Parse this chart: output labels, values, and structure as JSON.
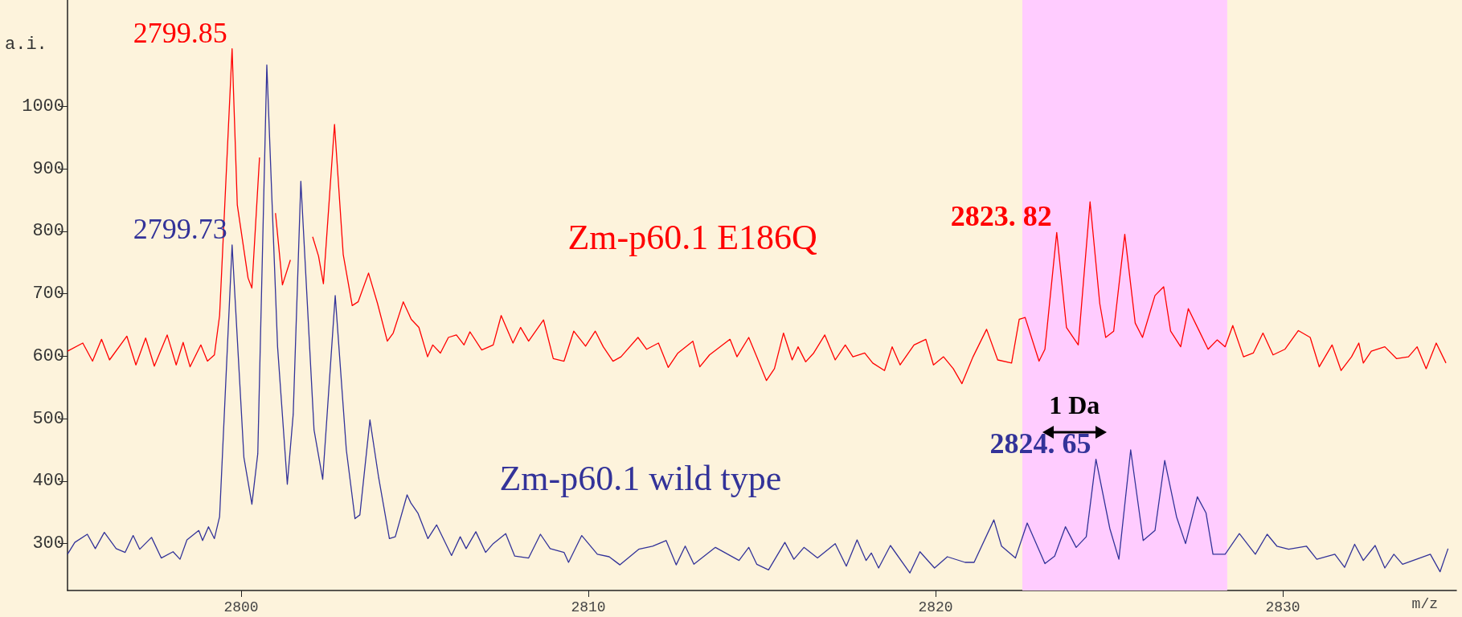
{
  "chart_data": {
    "type": "line",
    "xlabel": "m/z",
    "ylabel": "a.i.",
    "xlim": [
      2795,
      2835
    ],
    "xticks": [
      2800,
      2810,
      2820,
      2830
    ],
    "ylim": [
      225,
      1170
    ],
    "yticks": [
      300,
      400,
      500,
      600,
      700,
      800,
      900,
      1000
    ],
    "grid": false,
    "legend": false,
    "bands": [
      {
        "axis": "x",
        "from": 2822.5,
        "to": 2828.4,
        "color": "#ffccff"
      }
    ],
    "annotations": [
      {
        "text": "2799.85",
        "x": 2799.74,
        "y": 1092
      },
      {
        "text": "2799.73",
        "x": 2799.74,
        "y": 778
      },
      {
        "text": "2823. 82",
        "x": 2823.49,
        "y": 798
      },
      {
        "text": "2824. 65",
        "x": 2824.62,
        "y": 435
      },
      "1 Da"
    ],
    "series": [
      {
        "name": "Zm-p60.1 E186Q",
        "color": "#ff0000",
        "x": [
          2795.0,
          2795.44,
          2795.72,
          2795.98,
          2796.21,
          2796.71,
          2796.97,
          2797.25,
          2797.5,
          2797.87,
          2798.13,
          2798.33,
          2798.53,
          2798.84,
          2799.03,
          2799.23,
          2799.38,
          2799.74,
          2799.89,
          2800.2,
          2800.31,
          2800.53,
          2800.68,
          2800.84,
          2800.99,
          2801.19,
          2801.42,
          2801.62,
          2801.78,
          2802.06,
          2802.23,
          2802.37,
          2802.69,
          2802.94,
          2803.2,
          2803.37,
          2803.67,
          2803.93,
          2804.21,
          2804.38,
          2804.67,
          2804.9,
          2805.12,
          2805.37,
          2805.52,
          2805.74,
          2805.97,
          2806.2,
          2806.42,
          2806.59,
          2806.93,
          2807.26,
          2807.49,
          2807.83,
          2808.05,
          2808.28,
          2808.71,
          2808.99,
          2809.3,
          2809.58,
          2809.92,
          2810.2,
          2810.43,
          2810.71,
          2810.94,
          2811.43,
          2811.68,
          2812.02,
          2812.3,
          2812.58,
          2813.01,
          2813.21,
          2813.49,
          2814.08,
          2814.28,
          2814.62,
          2814.85,
          2815.13,
          2815.36,
          2815.62,
          2815.87,
          2816.04,
          2816.26,
          2816.49,
          2816.81,
          2817.11,
          2817.4,
          2817.62,
          2817.96,
          2818.19,
          2818.53,
          2818.75,
          2818.98,
          2819.38,
          2819.72,
          2819.94,
          2820.23,
          2820.51,
          2820.76,
          2821.08,
          2821.47,
          2821.79,
          2822.19,
          2822.41,
          2822.58,
          2822.98,
          2823.15,
          2823.49,
          2823.77,
          2824.11,
          2824.45,
          2824.73,
          2824.9,
          2825.13,
          2825.45,
          2825.75,
          2825.96,
          2826.32,
          2826.57,
          2826.77,
          2827.06,
          2827.28,
          2827.57,
          2827.85,
          2828.11,
          2828.34,
          2828.56,
          2828.87,
          2829.15,
          2829.43,
          2829.72,
          2830.06,
          2830.45,
          2830.79,
          2831.05,
          2831.42,
          2831.68,
          2831.98,
          2832.19,
          2832.32,
          2832.55,
          2832.94,
          2833.28,
          2833.62,
          2833.87,
          2834.13,
          2834.42,
          2834.7
        ],
        "values": [
          608,
          621,
          592,
          627,
          594,
          632,
          586,
          629,
          584,
          634,
          586,
          622,
          583,
          618,
          592,
          602,
          665,
          1092,
          842,
          725,
          709,
          918,
          null,
          null,
          829,
          714,
          754,
          null,
          null,
          791,
          760,
          716,
          971,
          763,
          681,
          687,
          733,
          684,
          624,
          637,
          687,
          659,
          646,
          599,
          618,
          605,
          630,
          634,
          618,
          639,
          610,
          618,
          665,
          621,
          646,
          624,
          658,
          596,
          592,
          640,
          616,
          640,
          615,
          592,
          599,
          630,
          611,
          621,
          582,
          605,
          624,
          583,
          602,
          627,
          599,
          630,
          599,
          561,
          580,
          637,
          594,
          615,
          591,
          605,
          634,
          594,
          618,
          599,
          605,
          589,
          577,
          615,
          586,
          618,
          627,
          586,
          599,
          580,
          556,
          599,
          643,
          594,
          589,
          659,
          662,
          592,
          611,
          798,
          646,
          618,
          847,
          684,
          630,
          640,
          795,
          653,
          630,
          697,
          711,
          640,
          615,
          676,
          643,
          611,
          626,
          615,
          649,
          599,
          605,
          637,
          602,
          611,
          641,
          630,
          583,
          618,
          577,
          599,
          621,
          589,
          608,
          615,
          596,
          599,
          615,
          580,
          621,
          589
        ]
      },
      {
        "name": "Zm-p60.1 wild type",
        "color": "#333399",
        "x": [
          2795.0,
          2795.21,
          2795.57,
          2795.8,
          2796.06,
          2796.4,
          2796.66,
          2796.89,
          2797.08,
          2797.42,
          2797.7,
          2798.04,
          2798.24,
          2798.44,
          2798.78,
          2798.89,
          2799.06,
          2799.23,
          2799.38,
          2799.74,
          2800.08,
          2800.31,
          2800.48,
          2800.74,
          2801.05,
          2801.33,
          2801.5,
          2801.72,
          2802.1,
          2802.35,
          2802.71,
          2803.03,
          2803.28,
          2803.42,
          2803.71,
          2803.96,
          2804.27,
          2804.44,
          2804.78,
          2804.89,
          2805.09,
          2805.38,
          2805.63,
          2806.06,
          2806.31,
          2806.48,
          2806.76,
          2807.04,
          2807.26,
          2807.62,
          2807.88,
          2808.28,
          2808.62,
          2808.9,
          2809.3,
          2809.43,
          2809.81,
          2810.26,
          2810.6,
          2810.91,
          2811.45,
          2811.85,
          2812.24,
          2812.53,
          2812.79,
          2813.04,
          2813.66,
          2814.34,
          2814.62,
          2814.85,
          2815.19,
          2815.66,
          2815.92,
          2816.21,
          2816.6,
          2817.11,
          2817.43,
          2817.74,
          2818.0,
          2818.15,
          2818.36,
          2818.7,
          2819.26,
          2819.55,
          2819.97,
          2820.34,
          2820.85,
          2821.11,
          2821.68,
          2821.9,
          2822.3,
          2822.64,
          2823.15,
          2823.43,
          2823.74,
          2824.05,
          2824.34,
          2824.62,
          2825.02,
          2825.28,
          2825.62,
          2825.98,
          2826.32,
          2826.6,
          2826.94,
          2827.2,
          2827.54,
          2827.79,
          2827.99,
          2828.34,
          2828.75,
          2829.21,
          2829.55,
          2829.83,
          2830.17,
          2830.68,
          2830.98,
          2831.5,
          2831.78,
          2832.07,
          2832.32,
          2832.66,
          2832.94,
          2833.2,
          2833.45,
          2834.25,
          2834.53,
          2834.76
        ],
        "values": [
          283,
          302,
          315,
          292,
          318,
          292,
          286,
          313,
          291,
          310,
          277,
          287,
          275,
          306,
          321,
          305,
          327,
          308,
          343,
          778,
          438,
          363,
          444,
          1066,
          615,
          395,
          507,
          880,
          482,
          403,
          697,
          450,
          340,
          346,
          498,
          406,
          308,
          311,
          378,
          365,
          349,
          308,
          330,
          281,
          311,
          292,
          319,
          286,
          300,
          316,
          280,
          277,
          315,
          292,
          286,
          270,
          313,
          283,
          279,
          266,
          291,
          296,
          305,
          266,
          296,
          267,
          294,
          273,
          294,
          267,
          258,
          302,
          275,
          294,
          277,
          300,
          264,
          306,
          273,
          285,
          261,
          297,
          253,
          287,
          261,
          279,
          270,
          270,
          338,
          296,
          277,
          333,
          268,
          280,
          327,
          294,
          311,
          435,
          324,
          275,
          450,
          305,
          321,
          433,
          343,
          300,
          375,
          349,
          283,
          283,
          316,
          283,
          315,
          296,
          291,
          296,
          275,
          283,
          262,
          299,
          273,
          297,
          261,
          283,
          267,
          283,
          255,
          292
        ]
      }
    ]
  }
}
